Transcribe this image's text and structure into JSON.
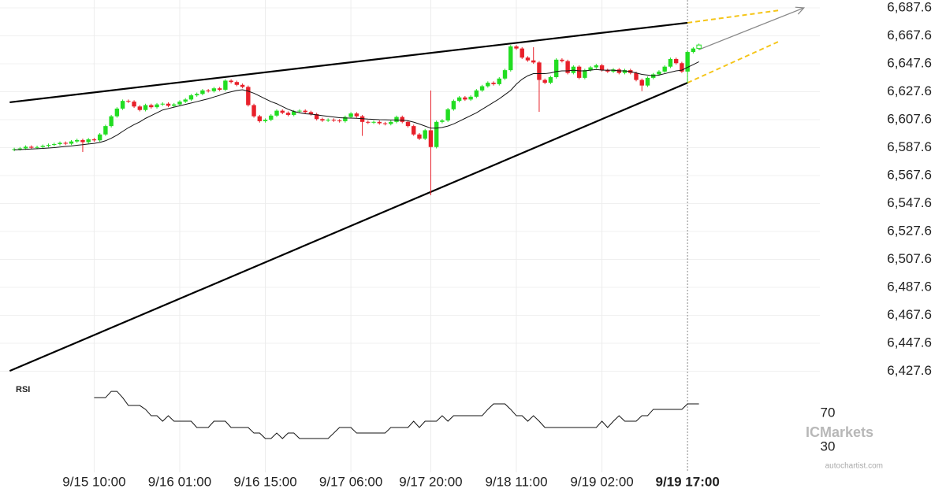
{
  "chart_data": {
    "type": "candlestick",
    "xlim": [
      -2.5,
      163.3
    ],
    "ylim": [
      6421.7,
      6693.2
    ],
    "yticks": [
      {
        "value": 6427.6,
        "label": "6,427.6"
      },
      {
        "value": 6447.6,
        "label": "6,447.6"
      },
      {
        "value": 6467.6,
        "label": "6,467.6"
      },
      {
        "value": 6487.6,
        "label": "6,487.6"
      },
      {
        "value": 6507.6,
        "label": "6,507.6"
      },
      {
        "value": 6527.6,
        "label": "6,527.6"
      },
      {
        "value": 6547.6,
        "label": "6,547.6"
      },
      {
        "value": 6567.6,
        "label": "6,567.6"
      },
      {
        "value": 6587.6,
        "label": "6,587.6"
      },
      {
        "value": 6607.6,
        "label": "6,607.6"
      },
      {
        "value": 6627.6,
        "label": "6,627.6"
      },
      {
        "value": 6647.6,
        "label": "6,647.6"
      },
      {
        "value": 6667.6,
        "label": "6,667.6"
      },
      {
        "value": 6687.6,
        "label": "6,687.6"
      }
    ],
    "xticks": [
      {
        "value": 14,
        "label": "9/15 10:00"
      },
      {
        "value": 29,
        "label": "9/16 01:00"
      },
      {
        "value": 44,
        "label": "9/16 15:00"
      },
      {
        "value": 59,
        "label": "9/17 06:00"
      },
      {
        "value": 73,
        "label": "9/17 20:00"
      },
      {
        "value": 88,
        "label": "9/18 11:00"
      },
      {
        "value": 103,
        "label": "9/19 02:00"
      },
      {
        "value": 118,
        "label": "9/19 17:00"
      }
    ],
    "marker_tick": 7,
    "grid": true,
    "up_color": "#22dd22",
    "down_color": "#e8202a",
    "last_candle_hollow": true,
    "open": [
      6586.0,
      6586.5,
      6587.0,
      6588.2,
      6587.5,
      6588.0,
      6588.8,
      6589.5,
      6590.1,
      6591.0,
      6590.4,
      6592.0,
      6593.0,
      6591.5,
      6593.5,
      6592.8,
      6597.0,
      6603.0,
      6610.0,
      6615.5,
      6621.0,
      6620.5,
      6617.0,
      6614.5,
      6618.0,
      6616.5,
      6618.5,
      6619.0,
      6617.5,
      6618.5,
      6620.5,
      6622.0,
      6625.0,
      6626.0,
      6628.5,
      6628.0,
      6630.0,
      6629.0,
      6635.5,
      6634.5,
      6632.5,
      6631.0,
      6618.0,
      6610.0,
      6606.5,
      6607.5,
      6610.5,
      6614.0,
      6612.5,
      6611.0,
      6613.5,
      6614.0,
      6613.0,
      6611.5,
      6608.0,
      6607.0,
      6607.5,
      6607.0,
      6606.5,
      6609.5,
      6612.0,
      6610.0,
      6606.0,
      6605.5,
      6606.0,
      6605.0,
      6604.5,
      6606.0,
      6609.5,
      6606.0,
      6603.0,
      6597.0,
      6594.0,
      6600.0,
      6588.0,
      6606.0,
      6607.0,
      6615.0,
      6621.0,
      6623.5,
      6622.0,
      6624.0,
      6628.5,
      6631.5,
      6634.0,
      6633.0,
      6637.0,
      6643.0,
      6660.0,
      6658.5,
      6652.0,
      6650.0,
      6648.5,
      6636.0,
      6634.0,
      6638.0,
      6650.5,
      6649.5,
      6641.0,
      6645.5,
      6637.5,
      6643.0,
      6645.0,
      6646.5,
      6643.0,
      6642.0,
      6643.5,
      6641.0,
      6643.0,
      6641.0,
      6636.0,
      6632.0,
      6637.5,
      6640.0,
      6642.0,
      6645.5,
      6651.0,
      6648.0,
      6642.0,
      6656.0,
      6658.5
    ],
    "high": [
      6587.5,
      6588.0,
      6589.2,
      6589.2,
      6589.0,
      6589.8,
      6590.5,
      6591.1,
      6592.0,
      6592.0,
      6593.0,
      6594.0,
      6594.0,
      6594.5,
      6594.5,
      6598.0,
      6604.0,
      6611.0,
      6616.5,
      6622.0,
      6622.0,
      6621.5,
      6618.0,
      6619.0,
      6619.0,
      6619.5,
      6620.0,
      6620.0,
      6619.5,
      6621.5,
      6623.0,
      6626.0,
      6627.0,
      6629.5,
      6629.5,
      6631.0,
      6631.0,
      6636.5,
      6636.5,
      6635.5,
      6633.5,
      6632.0,
      6619.0,
      6611.0,
      6608.5,
      6611.5,
      6615.0,
      6615.0,
      6613.5,
      6614.5,
      6615.0,
      6615.0,
      6614.0,
      6612.5,
      6609.0,
      6608.5,
      6608.5,
      6608.0,
      6610.5,
      6613.0,
      6613.0,
      6611.0,
      6607.0,
      6607.0,
      6607.0,
      6606.0,
      6607.0,
      6610.5,
      6610.5,
      6607.0,
      6604.0,
      6598.0,
      6601.0,
      6628.4,
      6607.0,
      6608.0,
      6616.0,
      6622.0,
      6624.5,
      6624.5,
      6625.0,
      6629.5,
      6632.5,
      6635.0,
      6635.0,
      6638.0,
      6644.0,
      6661.0,
      6661.0,
      6659.5,
      6653.0,
      6659.4,
      6649.5,
      6637.0,
      6639.0,
      6651.5,
      6651.5,
      6650.5,
      6646.5,
      6646.5,
      6644.0,
      6646.0,
      6647.5,
      6647.5,
      6644.0,
      6644.5,
      6644.5,
      6644.0,
      6644.0,
      6642.0,
      6637.0,
      6638.5,
      6641.0,
      6643.0,
      6646.5,
      6652.0,
      6652.0,
      6649.0,
      6657.0,
      6659.5,
      6662.0
    ],
    "low": [
      6585.0,
      6585.5,
      6586.0,
      6586.5,
      6586.5,
      6587.0,
      6587.8,
      6588.5,
      6589.1,
      6589.4,
      6589.4,
      6591.0,
      6584.5,
      6590.5,
      6591.8,
      6591.8,
      6596.0,
      6602.0,
      6609.0,
      6614.5,
      6619.5,
      6616.0,
      6613.5,
      6613.5,
      6615.5,
      6615.5,
      6617.5,
      6616.5,
      6616.5,
      6617.5,
      6619.5,
      6621.0,
      6624.0,
      6625.0,
      6627.0,
      6627.0,
      6628.0,
      6628.0,
      6633.5,
      6631.5,
      6630.0,
      6617.0,
      6609.0,
      6605.5,
      6605.5,
      6606.5,
      6609.5,
      6611.5,
      6610.0,
      6610.0,
      6612.5,
      6612.0,
      6610.5,
      6607.0,
      6606.0,
      6606.0,
      6606.0,
      6605.5,
      6605.5,
      6608.5,
      6609.0,
      6596.0,
      6604.5,
      6604.5,
      6604.0,
      6603.5,
      6603.5,
      6605.0,
      6605.0,
      6602.0,
      6596.0,
      6593.0,
      6593.0,
      6553.5,
      6587.0,
      6605.0,
      6606.0,
      6614.0,
      6620.0,
      6621.0,
      6621.0,
      6623.0,
      6627.5,
      6630.5,
      6632.0,
      6632.0,
      6636.0,
      6642.0,
      6657.5,
      6651.0,
      6649.0,
      6647.5,
      6613.2,
      6633.0,
      6633.0,
      6637.0,
      6648.5,
      6640.0,
      6640.0,
      6636.5,
      6636.5,
      6642.0,
      6644.0,
      6642.0,
      6641.0,
      6641.0,
      6640.0,
      6640.0,
      6640.0,
      6635.0,
      6628.0,
      6631.0,
      6636.5,
      6639.0,
      6641.0,
      6644.5,
      6647.0,
      6641.0,
      6634.0,
      6655.0,
      6657.5
    ],
    "close": [
      6586.5,
      6587.0,
      6588.2,
      6587.5,
      6588.0,
      6588.8,
      6589.5,
      6590.1,
      6591.0,
      6590.4,
      6592.0,
      6593.0,
      6591.5,
      6593.5,
      6592.8,
      6597.0,
      6603.0,
      6610.0,
      6615.5,
      6621.0,
      6620.5,
      6617.0,
      6614.5,
      6618.0,
      6616.5,
      6618.5,
      6619.0,
      6617.5,
      6618.5,
      6620.5,
      6622.0,
      6625.0,
      6626.0,
      6628.5,
      6628.0,
      6630.0,
      6629.0,
      6635.5,
      6634.5,
      6632.5,
      6631.0,
      6618.0,
      6610.0,
      6606.5,
      6607.5,
      6610.5,
      6614.0,
      6612.5,
      6611.0,
      6613.5,
      6614.0,
      6613.0,
      6611.5,
      6608.0,
      6607.0,
      6607.5,
      6607.0,
      6606.5,
      6609.5,
      6612.0,
      6610.0,
      6606.0,
      6605.5,
      6606.0,
      6605.0,
      6604.5,
      6606.0,
      6609.5,
      6606.0,
      6603.0,
      6597.0,
      6594.0,
      6600.0,
      6588.0,
      6606.0,
      6607.0,
      6615.0,
      6621.0,
      6623.5,
      6622.0,
      6624.0,
      6628.5,
      6631.5,
      6634.0,
      6633.0,
      6637.0,
      6643.0,
      6660.0,
      6658.5,
      6652.0,
      6650.0,
      6648.5,
      6636.0,
      6634.0,
      6638.0,
      6650.5,
      6649.5,
      6641.0,
      6645.5,
      6637.5,
      6643.0,
      6645.0,
      6646.5,
      6643.0,
      6642.0,
      6643.5,
      6641.0,
      6643.0,
      6641.0,
      6636.0,
      6632.0,
      6637.5,
      6640.0,
      6642.0,
      6645.5,
      6651.0,
      6648.0,
      6642.0,
      6656.0,
      6658.5,
      6661.0
    ],
    "ma": {
      "color": "#111111",
      "values": [
        6586.0,
        6586.2,
        6586.4,
        6586.6,
        6586.8,
        6587.0,
        6587.3,
        6587.6,
        6588.0,
        6588.4,
        6588.8,
        6589.3,
        6589.7,
        6590.2,
        6590.6,
        6591.3,
        6592.5,
        6594.3,
        6596.5,
        6599.2,
        6601.8,
        6604.0,
        6606.0,
        6608.5,
        6610.5,
        6612.5,
        6614.5,
        6615.5,
        6616.5,
        6617.5,
        6618.5,
        6619.5,
        6620.5,
        6621.5,
        6622.5,
        6623.8,
        6625.0,
        6626.5,
        6627.5,
        6628.5,
        6629.0,
        6628.0,
        6626.5,
        6624.5,
        6622.5,
        6620.5,
        6619.0,
        6617.0,
        6615.0,
        6613.5,
        6612.5,
        6611.8,
        6611.5,
        6611.0,
        6610.5,
        6610.0,
        6609.5,
        6609.0,
        6608.8,
        6608.7,
        6608.6,
        6608.3,
        6608.0,
        6607.8,
        6607.6,
        6607.5,
        6607.4,
        6607.4,
        6607.2,
        6606.8,
        6605.8,
        6604.5,
        6603.0,
        6601.5,
        6601.5,
        6602.0,
        6603.0,
        6604.5,
        6606.5,
        6608.5,
        6610.5,
        6612.5,
        6615.0,
        6617.5,
        6620.0,
        6622.5,
        6625.5,
        6628.5,
        6633.0,
        6636.5,
        6639.0,
        6640.5,
        6640.5,
        6640.5,
        6641.0,
        6642.0,
        6642.5,
        6642.5,
        6643.0,
        6642.5,
        6642.5,
        6643.0,
        6643.5,
        6643.0,
        6643.0,
        6643.0,
        6642.5,
        6642.5,
        6642.0,
        6641.0,
        6640.0,
        6639.5,
        6639.0,
        6639.5,
        6640.5,
        6641.5,
        6642.5,
        6643.0,
        6645.0,
        6647.0,
        6649.0
      ]
    },
    "trendlines": [
      {
        "from": [
          -0.8,
          6620.0
        ],
        "to": [
          118,
          6676.9
        ],
        "color": "#000000",
        "dashed": false
      },
      {
        "from": [
          -0.8,
          6427.8
        ],
        "to": [
          118,
          6634.0
        ],
        "color": "#000000",
        "dashed": false
      },
      {
        "from": [
          118,
          6676.9
        ],
        "to": [
          134.2,
          6685.9
        ],
        "color": "#f5c518",
        "dashed": true
      },
      {
        "from": [
          118,
          6634.0
        ],
        "to": [
          134.2,
          6663.9
        ],
        "color": "#f5c518",
        "dashed": true
      }
    ],
    "arrow": {
      "from": [
        120,
        6657.7
      ],
      "to": [
        138.4,
        6687.6
      ],
      "color": "#888888"
    },
    "rsi": {
      "label": "RSI",
      "ylim": [
        0.2,
        102.6
      ],
      "yticks": [
        30,
        70
      ],
      "values": [
        null,
        null,
        null,
        null,
        null,
        null,
        null,
        null,
        null,
        null,
        null,
        null,
        null,
        null,
        88.6,
        88.6,
        88.6,
        96.0,
        96.0,
        88.6,
        79.3,
        79.3,
        79.3,
        74.7,
        67.2,
        67.2,
        60.7,
        67.2,
        60.7,
        60.7,
        60.7,
        60.7,
        53.3,
        53.3,
        53.3,
        60.7,
        60.7,
        60.7,
        53.3,
        53.3,
        53.3,
        53.3,
        46.7,
        46.7,
        40.2,
        40.2,
        46.7,
        40.2,
        46.7,
        46.7,
        40.2,
        40.2,
        40.2,
        40.2,
        40.2,
        40.2,
        46.7,
        53.3,
        53.3,
        53.3,
        46.7,
        46.7,
        46.7,
        46.7,
        46.7,
        46.7,
        53.3,
        53.3,
        53.3,
        53.3,
        60.7,
        53.3,
        60.7,
        60.7,
        60.7,
        67.2,
        60.7,
        67.2,
        67.2,
        67.2,
        67.2,
        67.2,
        67.2,
        74.7,
        81.2,
        81.2,
        81.2,
        74.7,
        67.2,
        67.2,
        60.7,
        67.2,
        60.7,
        53.3,
        53.3,
        53.3,
        53.3,
        53.3,
        53.3,
        53.3,
        53.3,
        53.3,
        53.3,
        60.7,
        53.3,
        60.7,
        67.2,
        60.7,
        60.7,
        60.7,
        67.2,
        67.2,
        74.7,
        74.7,
        74.7,
        74.7,
        74.7,
        74.7,
        81.2,
        81.2,
        81.2
      ]
    },
    "watermark": "ICMarkets",
    "credit": "autochartist.com"
  }
}
